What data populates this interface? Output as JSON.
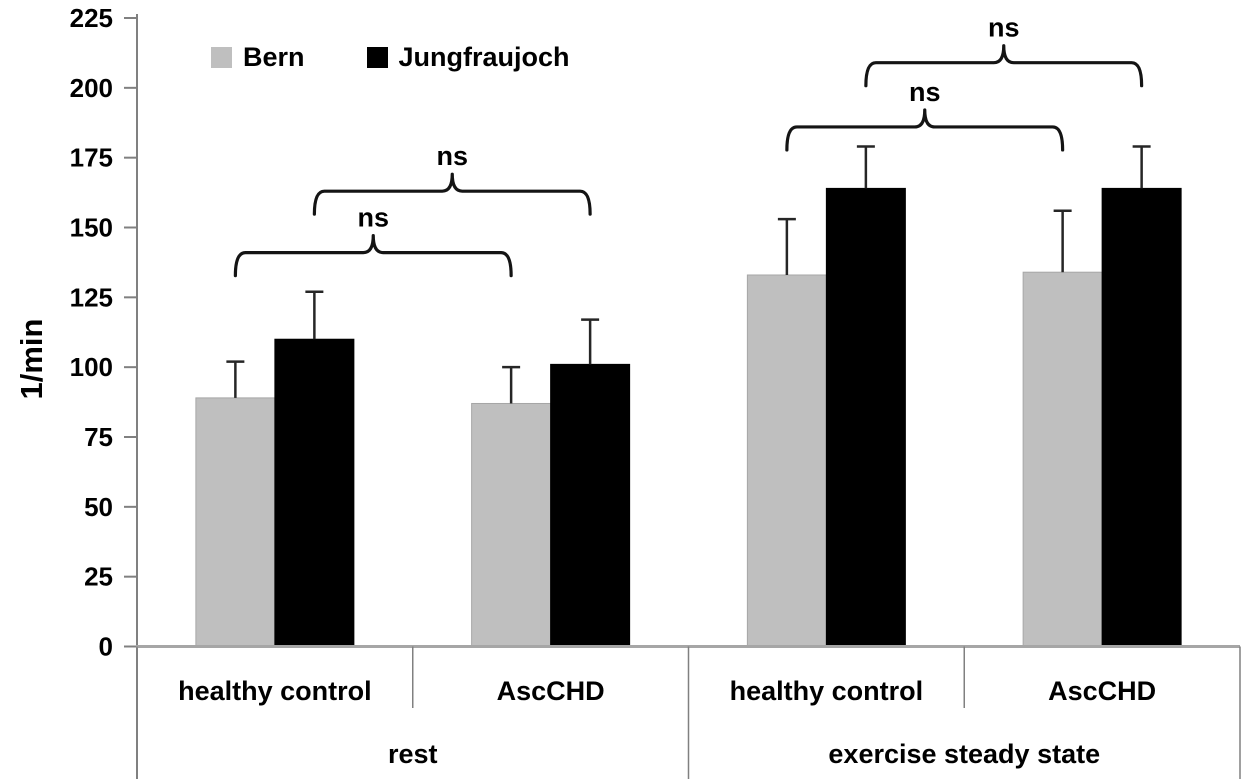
{
  "chart_data": {
    "type": "bar",
    "title": "",
    "ylabel": "1/min",
    "ylim": [
      0,
      225
    ],
    "yticks": [
      0,
      25,
      50,
      75,
      100,
      125,
      150,
      175,
      200,
      225
    ],
    "grid": false,
    "legend_position": "top-left",
    "categories": [
      "healthy control",
      "AscCHD",
      "healthy control",
      "AscCHD"
    ],
    "category_groups": [
      {
        "label": "rest",
        "start": 0,
        "end": 1
      },
      {
        "label": "exercise steady state",
        "start": 2,
        "end": 3
      }
    ],
    "series": [
      {
        "name": "Bern",
        "color": "#bfbfbf",
        "border": "#a6a6a6",
        "values": [
          89,
          87,
          133,
          134
        ],
        "errors": [
          13,
          13,
          20,
          22
        ]
      },
      {
        "name": "Jungfraujoch",
        "color": "#000000",
        "border": "#000000",
        "values": [
          110,
          101,
          164,
          164
        ],
        "errors": [
          17,
          16,
          15,
          15
        ]
      }
    ],
    "error_bars": "upper-only-with-caps",
    "significance": [
      {
        "label": "ns",
        "series": 0,
        "between": [
          0,
          1
        ],
        "y": 141
      },
      {
        "label": "ns",
        "series": 1,
        "between": [
          0,
          1
        ],
        "y": 163
      },
      {
        "label": "ns",
        "series": 0,
        "between": [
          2,
          3
        ],
        "y": 186
      },
      {
        "label": "ns",
        "series": 1,
        "between": [
          2,
          3
        ],
        "y": 209
      }
    ],
    "colors": {
      "axis_line": "#808080",
      "baseline": "#a6a6a6",
      "error_bar": "#262626",
      "bracket": "#141414",
      "text": "#000000"
    }
  }
}
